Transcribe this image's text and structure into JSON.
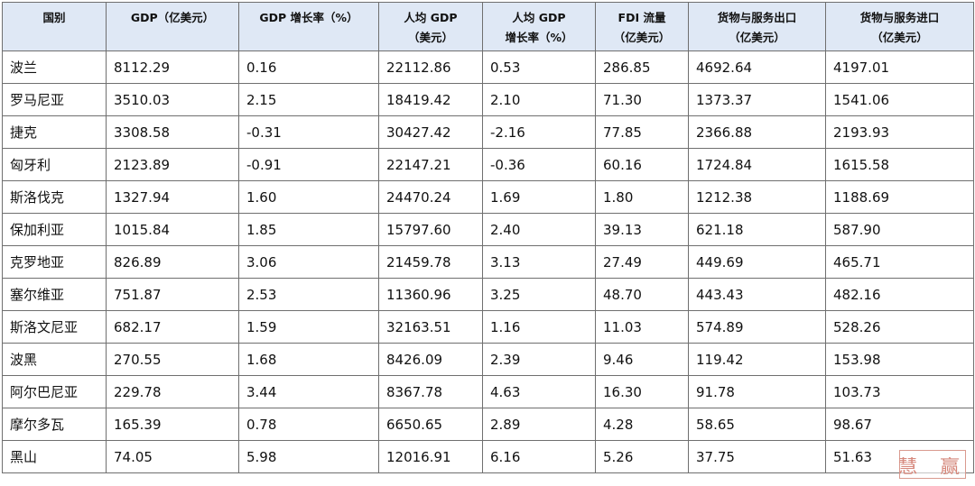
{
  "table": {
    "headers": [
      [
        "国别"
      ],
      [
        "GDP（亿美元）"
      ],
      [
        "GDP 增长率（%）"
      ],
      [
        "人均 GDP",
        "（美元）"
      ],
      [
        "人均 GDP",
        "增长率（%）"
      ],
      [
        "FDI 流量",
        "（亿美元）"
      ],
      [
        "货物与服务出口",
        "（亿美元）"
      ],
      [
        "货物与服务进口",
        "（亿美元）"
      ]
    ],
    "rows": [
      [
        "波兰",
        "8112.29",
        "0.16",
        "22112.86",
        "0.53",
        "286.85",
        "4692.64",
        "4197.01"
      ],
      [
        "罗马尼亚",
        "3510.03",
        "2.15",
        "18419.42",
        "2.10",
        "71.30",
        "1373.37",
        "1541.06"
      ],
      [
        "捷克",
        "3308.58",
        "-0.31",
        "30427.42",
        "-2.16",
        "77.85",
        "2366.88",
        "2193.93"
      ],
      [
        "匈牙利",
        "2123.89",
        "-0.91",
        "22147.21",
        "-0.36",
        "60.16",
        "1724.84",
        "1615.58"
      ],
      [
        "斯洛伐克",
        "1327.94",
        "1.60",
        "24470.24",
        "1.69",
        "1.80",
        "1212.38",
        "1188.69"
      ],
      [
        "保加利亚",
        "1015.84",
        "1.85",
        "15797.60",
        "2.40",
        "39.13",
        "621.18",
        "587.90"
      ],
      [
        "克罗地亚",
        "826.89",
        "3.06",
        "21459.78",
        "3.13",
        "27.49",
        "449.69",
        "465.71"
      ],
      [
        "塞尔维亚",
        "751.87",
        "2.53",
        "11360.96",
        "3.25",
        "48.70",
        "443.43",
        "482.16"
      ],
      [
        "斯洛文尼亚",
        "682.17",
        "1.59",
        "32163.51",
        "1.16",
        "11.03",
        "574.89",
        "528.26"
      ],
      [
        "波黑",
        "270.55",
        "1.68",
        "8426.09",
        "2.39",
        "9.46",
        "119.42",
        "153.98"
      ],
      [
        "阿尔巴尼亚",
        "229.78",
        "3.44",
        "8367.78",
        "4.63",
        "16.30",
        "91.78",
        "103.73"
      ],
      [
        "摩尔多瓦",
        "165.39",
        "0.78",
        "6650.65",
        "2.89",
        "4.28",
        "58.65",
        "98.67"
      ],
      [
        "黑山",
        "74.05",
        "5.98",
        "12016.91",
        "6.16",
        "5.26",
        "37.75",
        "51.63"
      ]
    ]
  },
  "colors": {
    "header_bg": "#dfe8f5",
    "border": "#6f6f6f",
    "seal": "#d6887c"
  }
}
